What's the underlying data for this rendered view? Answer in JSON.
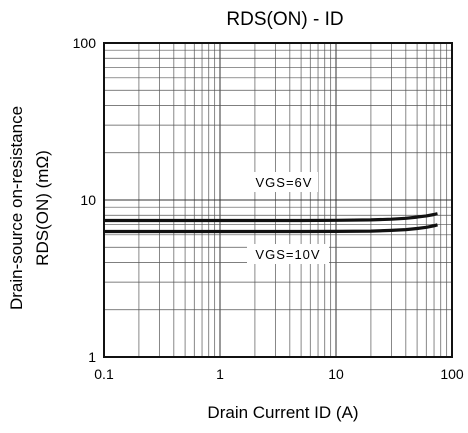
{
  "chart_data": {
    "type": "line",
    "title": "RDS(ON) - ID",
    "xlabel": "Drain Current  ID  (A)",
    "ylabel_line1": "Drain-source on-resistance",
    "ylabel_line2": "RDS(ON)   (mΩ)",
    "x_scale": "log",
    "y_scale": "log",
    "xlim": [
      0.1,
      100
    ],
    "ylim": [
      1,
      100
    ],
    "x_ticks": [
      "0.1",
      "1",
      "10",
      "100"
    ],
    "y_ticks": [
      "1",
      "10",
      "100"
    ],
    "grid": true,
    "series": [
      {
        "name": "VGS=6V",
        "x": [
          0.1,
          1,
          5,
          10,
          20,
          30,
          40,
          50,
          60,
          70,
          75
        ],
        "values": [
          7.4,
          7.4,
          7.4,
          7.42,
          7.47,
          7.55,
          7.65,
          7.78,
          7.92,
          8.08,
          8.18
        ]
      },
      {
        "name": "VGS=10V",
        "x": [
          0.1,
          1,
          5,
          10,
          20,
          30,
          40,
          50,
          60,
          70,
          75
        ],
        "values": [
          6.3,
          6.3,
          6.3,
          6.31,
          6.34,
          6.4,
          6.48,
          6.58,
          6.7,
          6.85,
          6.95
        ]
      }
    ]
  }
}
